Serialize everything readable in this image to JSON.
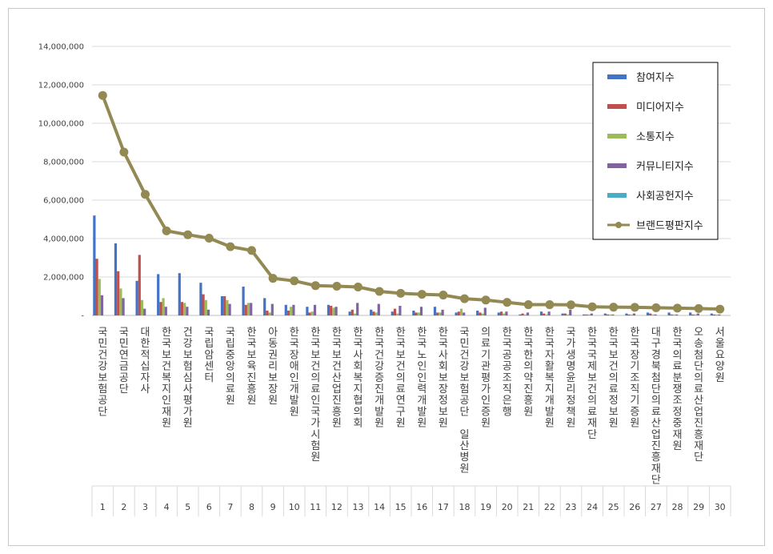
{
  "chart_data": {
    "type": "bar",
    "title": "",
    "xlabel": "",
    "ylabel": "",
    "ylim": [
      0,
      14000000
    ],
    "yticks": [
      0,
      2000000,
      4000000,
      6000000,
      8000000,
      10000000,
      12000000,
      14000000
    ],
    "ytick_labels": [
      "-",
      "2,000,000",
      "4,000,000",
      "6,000,000",
      "8,000,000",
      "10,000,000",
      "12,000,000",
      "14,000,000"
    ],
    "grid": true,
    "legend_position": "top-right",
    "categories": [
      "국민건강보험공단",
      "국민연금공단",
      "대한적십자사",
      "한국보건복지인재원",
      "건강보험심사평가원",
      "국립암센터",
      "국립중앙의료원",
      "한국보육진흥원",
      "아동권리보장원",
      "한국장애인개발원",
      "한국보건의료인국가시험원",
      "한국보건산업진흥원",
      "한국사회복지협의회",
      "한국건강증진개발원",
      "한국보건의료연구원",
      "한국노인인력개발원",
      "한국사회보장정보원",
      "국민건강보험공단 일산병원",
      "의료기관평가인증원",
      "한국공공조직은행",
      "한국한의약진흥원",
      "한국자활복지개발원",
      "국가생명윤리정책원",
      "한국국제보건의료재단",
      "한국보건의료정보원",
      "한국장기조직기증원",
      "대구경북첨단의료산업진흥재단",
      "한국의료분쟁조정중재원",
      "오송첨단의료산업진흥재단",
      "서울요양원"
    ],
    "indices": [
      "1",
      "2",
      "3",
      "4",
      "5",
      "6",
      "7",
      "8",
      "9",
      "10",
      "11",
      "12",
      "13",
      "14",
      "15",
      "16",
      "17",
      "18",
      "19",
      "20",
      "21",
      "22",
      "23",
      "24",
      "25",
      "26",
      "27",
      "28",
      "29",
      "30"
    ],
    "series": [
      {
        "name": "참여지수",
        "kind": "bar",
        "color": "#4472c4",
        "values": [
          5200000,
          3750000,
          1800000,
          2150000,
          2200000,
          1700000,
          1000000,
          1500000,
          900000,
          550000,
          450000,
          550000,
          200000,
          300000,
          200000,
          250000,
          450000,
          150000,
          250000,
          150000,
          50000,
          200000,
          100000,
          50000,
          100000,
          100000,
          150000,
          150000,
          150000,
          100000
        ]
      },
      {
        "name": "미디어지수",
        "kind": "bar",
        "color": "#c0504d",
        "values": [
          2950000,
          2300000,
          3150000,
          700000,
          700000,
          1100000,
          1000000,
          550000,
          250000,
          250000,
          150000,
          500000,
          300000,
          200000,
          350000,
          150000,
          150000,
          200000,
          150000,
          200000,
          100000,
          100000,
          100000,
          50000,
          50000,
          50000,
          100000,
          50000,
          50000,
          50000
        ]
      },
      {
        "name": "소통지수",
        "kind": "bar",
        "color": "#9bbb59",
        "values": [
          1900000,
          1400000,
          800000,
          900000,
          650000,
          800000,
          800000,
          650000,
          150000,
          450000,
          200000,
          400000,
          100000,
          150000,
          100000,
          150000,
          150000,
          350000,
          100000,
          100000,
          50000,
          50000,
          50000,
          50000,
          50000,
          50000,
          50000,
          50000,
          50000,
          50000
        ]
      },
      {
        "name": "커뮤니티지수",
        "kind": "bar",
        "color": "#8064a2",
        "values": [
          1050000,
          900000,
          350000,
          450000,
          450000,
          300000,
          600000,
          650000,
          600000,
          550000,
          550000,
          450000,
          650000,
          600000,
          500000,
          450000,
          300000,
          150000,
          400000,
          200000,
          150000,
          200000,
          300000,
          100000,
          50000,
          100000,
          50000,
          50000,
          100000,
          50000
        ]
      },
      {
        "name": "사회공헌지수",
        "kind": "bar",
        "color": "#4bacc6",
        "values": [
          0,
          0,
          0,
          0,
          0,
          0,
          0,
          0,
          0,
          0,
          0,
          0,
          0,
          0,
          0,
          0,
          0,
          0,
          0,
          0,
          0,
          0,
          0,
          0,
          0,
          0,
          0,
          0,
          0,
          0
        ]
      },
      {
        "name": "브랜드평판지수",
        "kind": "line",
        "color": "#938953",
        "values": [
          11450000,
          8500000,
          6300000,
          4400000,
          4200000,
          4020000,
          3580000,
          3380000,
          1930000,
          1800000,
          1550000,
          1520000,
          1480000,
          1250000,
          1150000,
          1100000,
          1060000,
          870000,
          800000,
          680000,
          560000,
          560000,
          550000,
          450000,
          430000,
          420000,
          400000,
          380000,
          360000,
          330000
        ]
      }
    ]
  }
}
